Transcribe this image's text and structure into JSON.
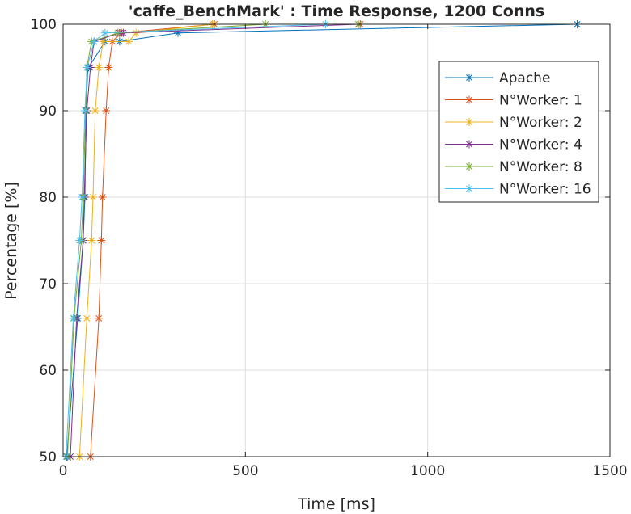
{
  "chart_data": {
    "type": "line",
    "title": "'caffe_BenchMark' : Time Response, 1200 Conns",
    "xlabel": "Time [ms]",
    "ylabel": "Percentage [%]",
    "xlim": [
      0,
      1500
    ],
    "ylim": [
      50,
      100
    ],
    "xticks": [
      "0",
      "500",
      "1000",
      "1500"
    ],
    "yticks": [
      "50",
      "60",
      "70",
      "80",
      "90",
      "100"
    ],
    "grid": true,
    "legend_position": "top-right",
    "marker": "asterisk",
    "series": [
      {
        "name": "Apache",
        "color": "#0072BD",
        "points": [
          [
            10,
            50
          ],
          [
            40,
            66
          ],
          [
            55,
            75
          ],
          [
            60,
            80
          ],
          [
            63,
            90
          ],
          [
            68,
            95
          ],
          [
            70,
            95
          ],
          [
            115,
            98
          ],
          [
            155,
            98
          ],
          [
            315,
            99
          ],
          [
            1410,
            100
          ]
        ]
      },
      {
        "name": "N°Worker: 1",
        "color": "#D95319",
        "points": [
          [
            75,
            50
          ],
          [
            98,
            66
          ],
          [
            105,
            75
          ],
          [
            108,
            80
          ],
          [
            118,
            90
          ],
          [
            125,
            95
          ],
          [
            135,
            98
          ],
          [
            160,
            99
          ],
          [
            415,
            100
          ],
          [
            815,
            100
          ]
        ]
      },
      {
        "name": "N°Worker: 2",
        "color": "#EDB120",
        "points": [
          [
            45,
            50
          ],
          [
            65,
            66
          ],
          [
            78,
            75
          ],
          [
            82,
            80
          ],
          [
            88,
            90
          ],
          [
            98,
            95
          ],
          [
            110,
            98
          ],
          [
            180,
            98
          ],
          [
            200,
            99
          ],
          [
            410,
            100
          ]
        ]
      },
      {
        "name": "N°Worker: 4",
        "color": "#7E2F8E",
        "points": [
          [
            20,
            50
          ],
          [
            37,
            66
          ],
          [
            55,
            75
          ],
          [
            58,
            80
          ],
          [
            65,
            90
          ],
          [
            75,
            95
          ],
          [
            85,
            98
          ],
          [
            155,
            99
          ],
          [
            165,
            99
          ],
          [
            810,
            100
          ]
        ]
      },
      {
        "name": "N°Worker: 8",
        "color": "#77AC30",
        "points": [
          [
            12,
            50
          ],
          [
            30,
            66
          ],
          [
            50,
            75
          ],
          [
            55,
            80
          ],
          [
            62,
            90
          ],
          [
            65,
            95
          ],
          [
            78,
            98
          ],
          [
            150,
            99
          ],
          [
            555,
            100
          ],
          [
            810,
            100
          ]
        ]
      },
      {
        "name": "N°Worker: 16",
        "color": "#4DBEEE",
        "points": [
          [
            8,
            50
          ],
          [
            28,
            66
          ],
          [
            45,
            75
          ],
          [
            52,
            80
          ],
          [
            60,
            90
          ],
          [
            66,
            95
          ],
          [
            85,
            98
          ],
          [
            115,
            99
          ],
          [
            720,
            100
          ]
        ]
      }
    ]
  }
}
